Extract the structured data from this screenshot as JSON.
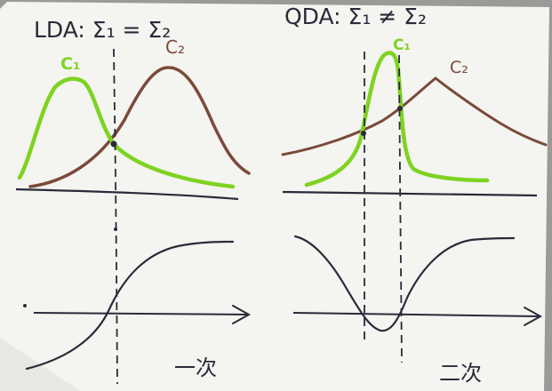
{
  "left_panel": {
    "title": "LDA: Σ₁ = Σ₂",
    "class1_label": "C₁",
    "class2_label": "C₂",
    "bottom_note": "一次"
  },
  "right_panel": {
    "title": "QDA: Σ₁ ≠ Σ₂",
    "class1_label": "C₁",
    "class2_label": "C₂",
    "bottom_note": "二次"
  },
  "colors": {
    "paper": "#f4f4f0",
    "class1": "#7ed321",
    "class2": "#7a4a3a",
    "ink": "#2a2a3a"
  }
}
